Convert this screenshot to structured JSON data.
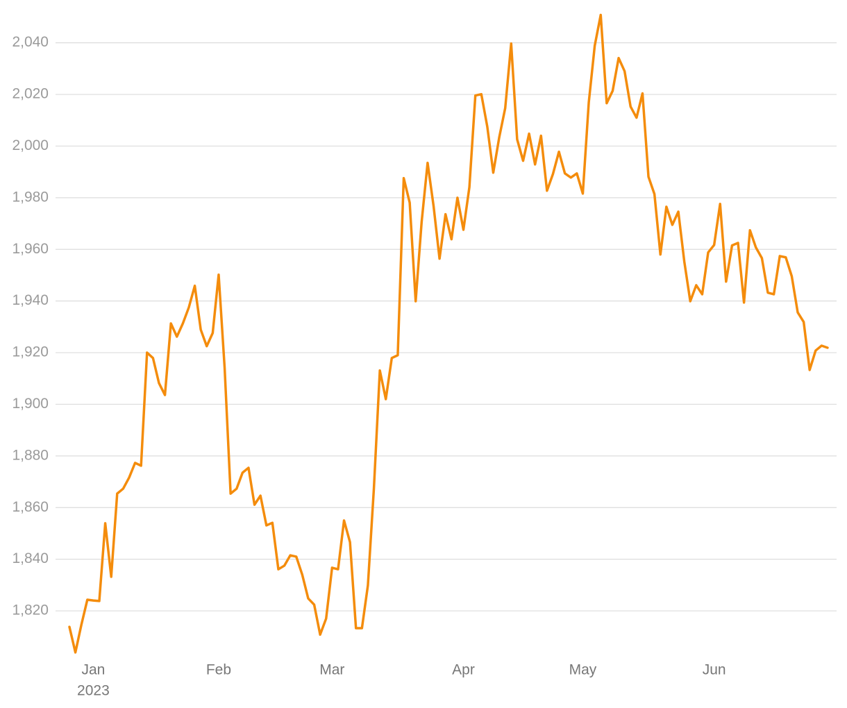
{
  "chart_data": {
    "type": "line",
    "categories": [
      null,
      null,
      null,
      null,
      "Jan",
      null,
      null,
      null,
      null,
      null,
      null,
      null,
      null,
      null,
      null,
      null,
      null,
      null,
      null,
      null,
      null,
      null,
      null,
      null,
      null,
      "Feb",
      null,
      null,
      null,
      null,
      null,
      null,
      null,
      null,
      null,
      null,
      null,
      null,
      null,
      null,
      null,
      null,
      null,
      null,
      "Mar",
      null,
      null,
      null,
      null,
      null,
      null,
      null,
      null,
      null,
      null,
      null,
      null,
      null,
      null,
      null,
      null,
      null,
      null,
      null,
      null,
      null,
      "Apr",
      null,
      null,
      null,
      null,
      null,
      null,
      null,
      null,
      null,
      null,
      null,
      null,
      null,
      null,
      null,
      null,
      null,
      null,
      null,
      "May",
      null,
      null,
      null,
      null,
      null,
      null,
      null,
      null,
      null,
      null,
      null,
      null,
      null,
      null,
      null,
      null,
      null,
      null,
      null,
      null,
      null,
      "Jun",
      null,
      null,
      null,
      null,
      null,
      null,
      null,
      null,
      null,
      null,
      null,
      null,
      null,
      null,
      null,
      null,
      null,
      null,
      null
    ],
    "year": "2023",
    "values": [
      1813.8,
      1803.9,
      1814.6,
      1824.3,
      1824.0,
      1823.8,
      1853.9,
      1833.2,
      1865.4,
      1867.3,
      1871.6,
      1877.3,
      1876.2,
      1920.0,
      1917.9,
      1908.2,
      1903.6,
      1931.3,
      1926.2,
      1931.3,
      1937.5,
      1945.9,
      1928.9,
      1922.5,
      1927.6,
      1950.2,
      1914.1,
      1865.4,
      1867.3,
      1873.5,
      1875.4,
      1861.1,
      1864.6,
      1853.1,
      1854.1,
      1836.1,
      1837.5,
      1841.5,
      1841.0,
      1834.0,
      1824.8,
      1822.4,
      1810.8,
      1817.0,
      1836.7,
      1836.1,
      1855.0,
      1846.6,
      1813.3,
      1813.3,
      1829.9,
      1867.3,
      1913.1,
      1902.0,
      1917.9,
      1919.0,
      1987.6,
      1978.1,
      1939.9,
      1970.6,
      1993.5,
      1976.8,
      1956.4,
      1973.6,
      1963.9,
      1980.0,
      1967.6,
      1984.1,
      2019.6,
      2020.1,
      2007.5,
      1989.7,
      2003.4,
      2014.7,
      2039.7,
      2002.6,
      1994.3,
      2004.8,
      1992.9,
      2004.0,
      1982.7,
      1989.2,
      1997.8,
      1989.4,
      1987.8,
      1989.4,
      1981.6,
      2016.9,
      2038.9,
      2050.8,
      2016.6,
      2021.4,
      2034.1,
      2029.0,
      2015.3,
      2011.0,
      2020.4,
      1988.1,
      1981.4,
      1958.0,
      1976.5,
      1969.5,
      1974.6,
      1955.3,
      1939.9,
      1946.1,
      1942.6,
      1958.8,
      1961.7,
      1977.6,
      1947.5,
      1961.5,
      1962.5,
      1939.4,
      1967.4,
      1960.7,
      1956.6,
      1943.2,
      1942.6,
      1957.4,
      1956.9,
      1949.6,
      1935.6,
      1931.9,
      1913.3,
      1920.8,
      1922.7,
      1921.9
    ],
    "color": "#f48c0c",
    "ylim": [
      1802,
      2052
    ],
    "yticks": [
      {
        "value": 1820,
        "label": "1,820"
      },
      {
        "value": 1840,
        "label": "1,840"
      },
      {
        "value": 1860,
        "label": "1,860"
      },
      {
        "value": 1880,
        "label": "1,880"
      },
      {
        "value": 1900,
        "label": "1,900"
      },
      {
        "value": 1920,
        "label": "1,920"
      },
      {
        "value": 1940,
        "label": "1,940"
      },
      {
        "value": 1960,
        "label": "1,960"
      },
      {
        "value": 1980,
        "label": "1,980"
      },
      {
        "value": 2000,
        "label": "2,000"
      },
      {
        "value": 2020,
        "label": "2,020"
      },
      {
        "value": 2040,
        "label": "2,040"
      }
    ],
    "grid": true
  }
}
